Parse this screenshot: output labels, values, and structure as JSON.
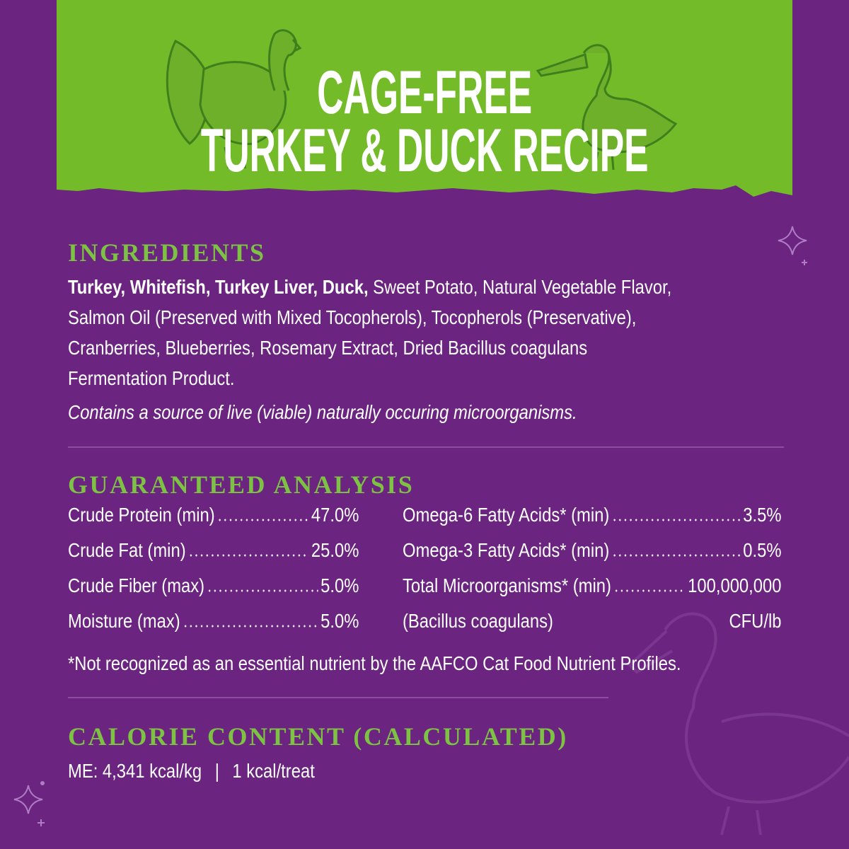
{
  "colors": {
    "background": "#6b2480",
    "band": "#74bb2a",
    "heading": "#7dc243",
    "bird": "#3f7f1c"
  },
  "header": {
    "line1": "CAGE-FREE",
    "line2": "TURKEY & DUCK RECIPE",
    "icons": [
      "turkey-illustration",
      "duck-illustration"
    ]
  },
  "ingredients": {
    "heading": "INGREDIENTS",
    "bold": "Turkey, Whitefish, Turkey Liver, Duck,",
    "lines": [
      " Sweet Potato, Natural Vegetable Flavor,",
      "Salmon Oil (Preserved with Mixed Tocopherols), Tocopherols (Preservative),",
      "Cranberries, Blueberries, Rosemary Extract, Dried Bacillus coagulans",
      "Fermentation Product."
    ],
    "note": "Contains a source of live (viable) naturally occuring microorganisms."
  },
  "analysis": {
    "heading": "GUARANTEED ANALYSIS",
    "left": [
      {
        "label": "Crude Protein (min)",
        "value": "47.0%"
      },
      {
        "label": "Crude Fat (min)",
        "value": "25.0%"
      },
      {
        "label": "Crude Fiber (max)",
        "value": "5.0%"
      },
      {
        "label": "Moisture (max)",
        "value": "5.0%"
      }
    ],
    "right": [
      {
        "label": "Omega-6 Fatty Acids* (min)",
        "value": "3.5%"
      },
      {
        "label": "Omega-3 Fatty Acids* (min)",
        "value": "0.5%"
      },
      {
        "label": "Total Microorganisms* (min)",
        "value": "100,000,000"
      },
      {
        "label": "(Bacillus coagulans)",
        "value": "CFU/lb"
      }
    ],
    "footnote": "*Not recognized as an essential nutrient by the AAFCO Cat Food Nutrient Profiles."
  },
  "calorie": {
    "heading": "CALORIE CONTENT (CALCULATED)",
    "me": "ME: 4,341 kcal/kg",
    "separator": "|",
    "per_treat": "1 kcal/treat"
  }
}
